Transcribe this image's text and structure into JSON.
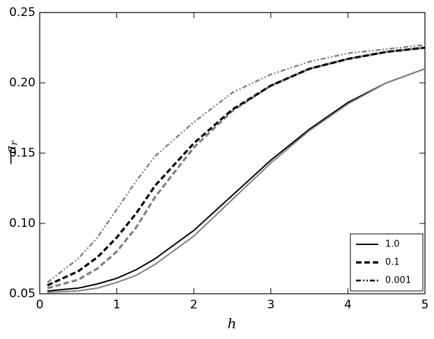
{
  "chart_data": {
    "type": "line",
    "xlabel": "h",
    "ylabel": {
      "main": "−a",
      "sub": "r"
    },
    "x": [
      0.1,
      0.5,
      0.75,
      1,
      1.25,
      1.5,
      2,
      2.5,
      3,
      3.5,
      4,
      4.5,
      5
    ],
    "series": [
      {
        "name": "1.0",
        "color": "#000000",
        "style": "solid",
        "values": [
          0.052,
          0.054,
          0.057,
          0.061,
          0.067,
          0.075,
          0.095,
          0.12,
          0.145,
          0.167,
          0.186,
          0.2,
          0.21
        ]
      },
      {
        "color": "#808080",
        "style": "solid",
        "values": [
          0.051,
          0.052,
          0.054,
          0.058,
          0.063,
          0.071,
          0.091,
          0.117,
          0.143,
          0.166,
          0.185,
          0.2,
          0.21
        ]
      },
      {
        "color": "#808080",
        "style": "dashed",
        "values": [
          0.054,
          0.06,
          0.068,
          0.08,
          0.097,
          0.119,
          0.154,
          0.18,
          0.198,
          0.21,
          0.217,
          0.222,
          0.225
        ]
      },
      {
        "name": "0.1",
        "color": "#000000",
        "style": "dashed",
        "values": [
          0.056,
          0.066,
          0.076,
          0.09,
          0.107,
          0.127,
          0.157,
          0.181,
          0.198,
          0.21,
          0.217,
          0.222,
          0.225
        ]
      },
      {
        "name": "0.001",
        "color": "#808080",
        "style": "dashdotdot",
        "values": [
          0.058,
          0.075,
          0.09,
          0.11,
          0.13,
          0.148,
          0.172,
          0.193,
          0.206,
          0.215,
          0.221,
          0.224,
          0.227
        ]
      }
    ],
    "xlim": [
      0,
      5
    ],
    "xticks": [
      0,
      1,
      2,
      3,
      4,
      5
    ],
    "ylim": [
      0.05,
      0.25
    ],
    "yticks": [
      0.05,
      {
        "value": 0.1,
        "label": "0.10"
      },
      0.15,
      {
        "value": 0.2,
        "label": "0.20"
      },
      0.25
    ],
    "legend": "lower right",
    "grid": false
  }
}
